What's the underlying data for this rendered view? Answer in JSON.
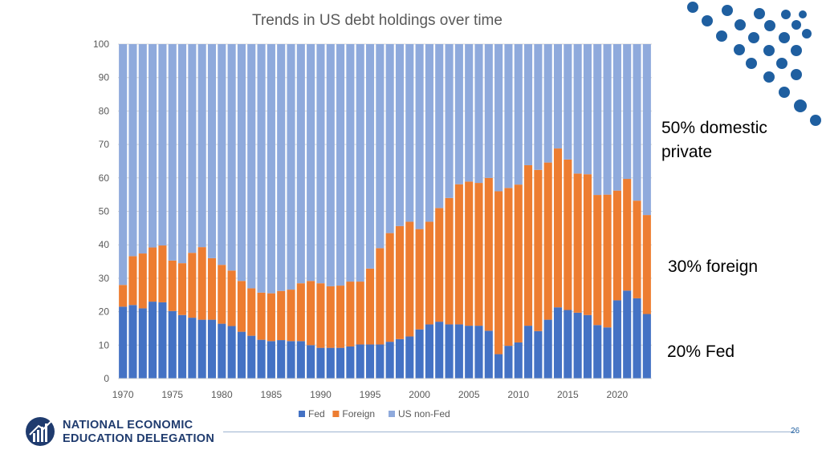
{
  "chart_data": {
    "type": "bar",
    "stacked": true,
    "title": "Trends in US debt holdings over time",
    "xlabel": "",
    "ylabel": "",
    "ylim": [
      0,
      100
    ],
    "yticks": [
      0,
      10,
      20,
      30,
      40,
      50,
      60,
      70,
      80,
      90,
      100
    ],
    "xticks": [
      "1970",
      "1975",
      "1980",
      "1985",
      "1990",
      "1995",
      "2000",
      "2005",
      "2010",
      "2015",
      "2020"
    ],
    "categories": [
      "1970",
      "1971",
      "1972",
      "1973",
      "1974",
      "1975",
      "1976",
      "1977",
      "1978",
      "1979",
      "1980",
      "1981",
      "1982",
      "1983",
      "1984",
      "1985",
      "1986",
      "1987",
      "1988",
      "1989",
      "1990",
      "1991",
      "1992",
      "1993",
      "1994",
      "1995",
      "1996",
      "1997",
      "1998",
      "1999",
      "2000",
      "2001",
      "2002",
      "2003",
      "2004",
      "2005",
      "2006",
      "2007",
      "2008",
      "2009",
      "2010",
      "2011",
      "2012",
      "2013",
      "2014",
      "2015",
      "2016",
      "2017",
      "2018",
      "2019",
      "2020",
      "2021",
      "2022",
      "2023"
    ],
    "series": [
      {
        "name": "Fed",
        "color": "#4472c4",
        "values": [
          21.5,
          22,
          21,
          23,
          22.8,
          20.2,
          19,
          18.2,
          17.6,
          17.6,
          16.4,
          15.7,
          14,
          12.8,
          11.6,
          11.2,
          11.5,
          11.2,
          11.2,
          10,
          9.2,
          9.2,
          9.2,
          9.6,
          10.2,
          10.2,
          10.2,
          11,
          11.8,
          12.6,
          14.7,
          16.2,
          17,
          16.2,
          16.2,
          15.8,
          15.8,
          14.3,
          7.3,
          9.8,
          10.8,
          15.8,
          14.2,
          17.6,
          21.3,
          20.5,
          19.7,
          19,
          16,
          15.3,
          23.4,
          26.3,
          24,
          19.3
        ]
      },
      {
        "name": "Foreign",
        "color": "#ed7d31",
        "values": [
          6.5,
          14.6,
          16.4,
          16.2,
          17,
          15.1,
          15.5,
          19.4,
          21.7,
          18.4,
          17.6,
          16.6,
          15.2,
          14.2,
          14.1,
          14.3,
          14.7,
          15.4,
          17.3,
          19.2,
          19.3,
          18.4,
          18.6,
          19.4,
          18.8,
          22.7,
          28.8,
          32.5,
          33.8,
          34.3,
          30,
          30.7,
          34,
          37.8,
          41.9,
          43.1,
          42.7,
          45.7,
          48.7,
          47.2,
          47.2,
          48,
          48.2,
          47,
          47.5,
          45,
          41.6,
          42.1,
          38.9,
          39.7,
          32.8,
          33.4,
          29.2,
          29.6
        ]
      },
      {
        "name": "US non-Fed",
        "color": "#8faadc",
        "values": [
          72,
          63.4,
          62.6,
          60.8,
          60.2,
          64.7,
          65.5,
          62.4,
          60.7,
          64,
          66,
          67.7,
          70.8,
          73,
          74.3,
          74.5,
          73.8,
          73.4,
          71.5,
          70.8,
          71.5,
          72.4,
          72.2,
          71,
          71,
          67.1,
          61,
          56.5,
          54.4,
          53.1,
          55.3,
          53.1,
          49,
          46,
          41.9,
          41.1,
          41.5,
          40,
          44,
          43,
          42,
          36.2,
          37.6,
          35.4,
          31.2,
          34.5,
          38.7,
          38.9,
          45.1,
          45,
          43.8,
          40.3,
          46.8,
          51.1
        ]
      }
    ]
  },
  "annotations": {
    "domestic": "50% domestic\nprivate",
    "foreign": "30% foreign",
    "fed": "20% Fed"
  },
  "footer": {
    "org_line1": "NATIONAL ECONOMIC",
    "org_line2": "EDUCATION DELEGATION",
    "page_number": "26"
  },
  "colors": {
    "fed": "#4472c4",
    "foreign": "#ed7d31",
    "nonfed": "#8faadc",
    "brand_navy": "#1f3b6e",
    "dots": "#1f5fa0"
  }
}
